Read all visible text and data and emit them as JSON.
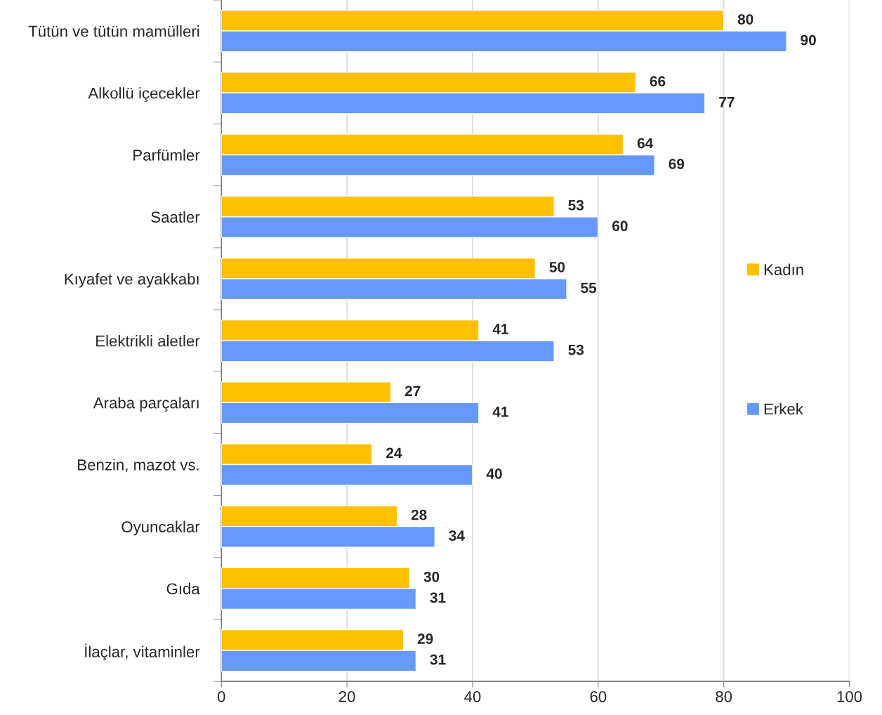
{
  "chart_data": {
    "type": "bar",
    "orientation": "horizontal",
    "categories": [
      "Tütün ve tütün mamülleri",
      "Alkollü içecekler",
      "Parfümler",
      "Saatler",
      "Kıyafet ve ayakkabı",
      "Elektrikli aletler",
      "Araba parçaları",
      "Benzin, mazot vs.",
      "Oyuncaklar",
      "Gıda",
      "İlaçlar, vitaminler"
    ],
    "series": [
      {
        "name": "Kadın",
        "color": "#ffc000",
        "values": [
          80,
          66,
          64,
          53,
          50,
          41,
          27,
          24,
          28,
          30,
          29
        ]
      },
      {
        "name": "Erkek",
        "color": "#6699ff",
        "values": [
          90,
          77,
          69,
          60,
          55,
          53,
          41,
          40,
          34,
          31,
          31
        ]
      }
    ],
    "xlim": [
      0,
      100
    ],
    "xticks": [
      0,
      20,
      40,
      60,
      80,
      100
    ],
    "grid": "x",
    "legend": "right",
    "data_labels": true
  }
}
